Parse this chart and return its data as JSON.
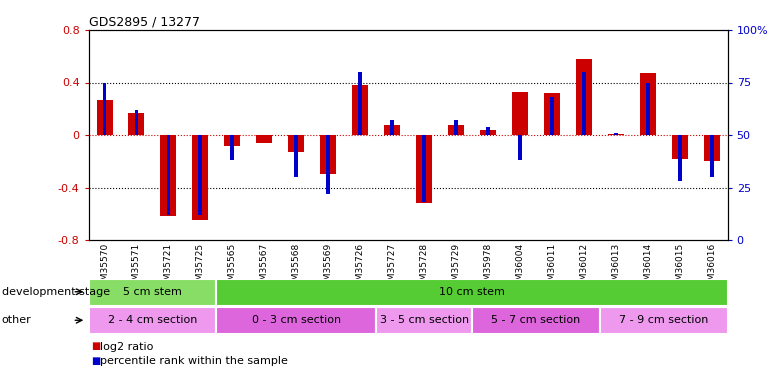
{
  "title": "GDS2895 / 13277",
  "samples": [
    "GSM35570",
    "GSM35571",
    "GSM35721",
    "GSM35725",
    "GSM35565",
    "GSM35567",
    "GSM35568",
    "GSM35569",
    "GSM35726",
    "GSM35727",
    "GSM35728",
    "GSM35729",
    "GSM35978",
    "GSM36004",
    "GSM36011",
    "GSM36012",
    "GSM36013",
    "GSM36014",
    "GSM36015",
    "GSM36016"
  ],
  "log2_ratio": [
    0.27,
    0.17,
    -0.62,
    -0.65,
    -0.08,
    -0.06,
    -0.13,
    -0.3,
    0.38,
    0.08,
    -0.52,
    0.08,
    0.04,
    0.33,
    0.32,
    0.58,
    0.01,
    0.47,
    -0.18,
    -0.2
  ],
  "pct_rank": [
    75,
    62,
    12,
    12,
    38,
    50,
    30,
    22,
    80,
    57,
    18,
    57,
    54,
    38,
    68,
    80,
    51,
    75,
    28,
    30
  ],
  "ylim_left": [
    -0.8,
    0.8
  ],
  "ylim_right": [
    0,
    100
  ],
  "bar_color_red": "#cc0000",
  "bar_color_blue": "#0000cc",
  "zero_line_color": "#cc0000",
  "dev_stage_groups": [
    {
      "label": "5 cm stem",
      "start": 0,
      "end": 4,
      "color": "#88dd66"
    },
    {
      "label": "10 cm stem",
      "start": 4,
      "end": 20,
      "color": "#55cc33"
    }
  ],
  "other_groups": [
    {
      "label": "2 - 4 cm section",
      "start": 0,
      "end": 4,
      "color": "#ee99ee"
    },
    {
      "label": "0 - 3 cm section",
      "start": 4,
      "end": 9,
      "color": "#dd66dd"
    },
    {
      "label": "3 - 5 cm section",
      "start": 9,
      "end": 12,
      "color": "#ee99ee"
    },
    {
      "label": "5 - 7 cm section",
      "start": 12,
      "end": 16,
      "color": "#dd66dd"
    },
    {
      "label": "7 - 9 cm section",
      "start": 16,
      "end": 20,
      "color": "#ee99ee"
    }
  ],
  "legend_red_label": "log2 ratio",
  "legend_blue_label": "percentile rank within the sample",
  "red_bar_width": 0.5,
  "blue_bar_width": 0.12
}
